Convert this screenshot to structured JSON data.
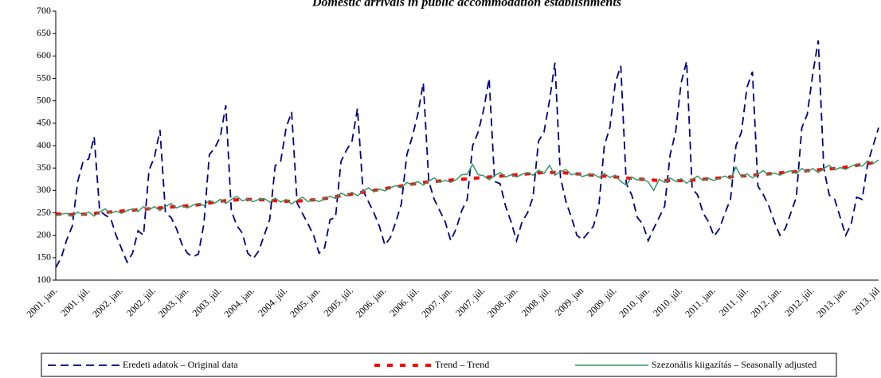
{
  "chart_data": {
    "type": "line",
    "title": "Domestic arrivals in public accommodation establishments",
    "categories": [
      "2001. jan.",
      null,
      null,
      null,
      null,
      null,
      "2001. júl.",
      null,
      null,
      null,
      null,
      null,
      "2002. jan.",
      null,
      null,
      null,
      null,
      null,
      "2002. júl.",
      null,
      null,
      null,
      null,
      null,
      "2003. jan.",
      null,
      null,
      null,
      null,
      null,
      "2003. júl.",
      null,
      null,
      null,
      null,
      null,
      "2004. jan.",
      null,
      null,
      null,
      null,
      null,
      "2004. júl.",
      null,
      null,
      null,
      null,
      null,
      "2005. jan.",
      null,
      null,
      null,
      null,
      null,
      "2005. júl.",
      null,
      null,
      null,
      null,
      null,
      "2006. jan.",
      null,
      null,
      null,
      null,
      null,
      "2006. júl.",
      null,
      null,
      null,
      null,
      null,
      "2007. jan.",
      null,
      null,
      null,
      null,
      null,
      "2007. júl.",
      null,
      null,
      null,
      null,
      null,
      "2008. jan.",
      null,
      null,
      null,
      null,
      null,
      "2008. júl.",
      null,
      null,
      null,
      null,
      null,
      "2009. jan",
      null,
      null,
      null,
      null,
      null,
      "2009. júl.",
      null,
      null,
      null,
      null,
      null,
      "2010. jan.",
      null,
      null,
      null,
      null,
      null,
      "2010. júl.",
      null,
      null,
      null,
      null,
      null,
      "2011. jan.",
      null,
      null,
      null,
      null,
      null,
      "2011. júl.",
      null,
      null,
      null,
      null,
      null,
      "2012. jan.",
      null,
      null,
      null,
      null,
      null,
      "2012. júl.",
      null,
      null,
      null,
      null,
      null,
      "2013. jan.",
      null,
      null,
      null,
      null,
      null,
      "2013. júl"
    ],
    "series": [
      {
        "name": "Eredeti adatok – Original data",
        "color": "#000080",
        "dash": "dashed",
        "values": [
          128,
          150,
          190,
          220,
          320,
          365,
          370,
          420,
          255,
          245,
          238,
          200,
          170,
          140,
          160,
          210,
          200,
          345,
          375,
          435,
          250,
          240,
          215,
          180,
          160,
          152,
          158,
          225,
          380,
          395,
          420,
          490,
          255,
          222,
          205,
          160,
          148,
          165,
          200,
          235,
          355,
          365,
          440,
          475,
          272,
          248,
          225,
          200,
          160,
          172,
          235,
          240,
          365,
          390,
          410,
          483,
          300,
          275,
          250,
          220,
          178,
          195,
          230,
          270,
          380,
          420,
          470,
          540,
          320,
          280,
          255,
          230,
          188,
          215,
          255,
          280,
          400,
          430,
          480,
          550,
          320,
          315,
          265,
          230,
          188,
          230,
          250,
          285,
          410,
          430,
          500,
          585,
          330,
          275,
          240,
          200,
          190,
          205,
          220,
          265,
          400,
          440,
          540,
          578,
          315,
          290,
          240,
          225,
          188,
          215,
          240,
          265,
          380,
          430,
          540,
          588,
          305,
          290,
          250,
          230,
          198,
          215,
          250,
          280,
          400,
          430,
          530,
          565,
          310,
          290,
          265,
          230,
          200,
          215,
          250,
          285,
          440,
          470,
          560,
          635,
          350,
          290,
          280,
          240,
          200,
          225,
          285,
          280,
          360,
          400,
          440
        ]
      },
      {
        "name": "Trend – Trend",
        "color": "#ff0000",
        "dash": "dotted",
        "values": [
          248,
          247,
          246,
          246,
          246,
          247,
          248,
          249,
          250,
          251,
          252,
          253,
          254,
          255,
          256,
          257,
          258,
          259,
          260,
          261,
          262,
          263,
          264,
          265,
          266,
          267,
          268,
          270,
          272,
          274,
          276,
          277,
          278,
          279,
          280,
          280,
          280,
          280,
          279,
          278,
          277,
          276,
          276,
          276,
          276,
          277,
          278,
          279,
          280,
          282,
          284,
          286,
          288,
          290,
          292,
          294,
          296,
          298,
          300,
          302,
          304,
          306,
          308,
          310,
          312,
          314,
          316,
          318,
          319,
          320,
          321,
          322,
          323,
          324,
          325,
          326,
          327,
          328,
          329,
          330,
          331,
          332,
          333,
          334,
          335,
          336,
          337,
          338,
          339,
          340,
          340,
          340,
          340,
          339,
          338,
          337,
          336,
          335,
          334,
          333,
          332,
          331,
          330,
          329,
          328,
          327,
          326,
          325,
          324,
          323,
          322,
          322,
          322,
          322,
          322,
          322,
          323,
          324,
          325,
          326,
          327,
          328,
          329,
          330,
          331,
          332,
          333,
          334,
          335,
          336,
          337,
          338,
          339,
          340,
          341,
          342,
          343,
          344,
          345,
          346,
          347,
          348,
          349,
          350,
          352,
          354,
          356,
          358,
          360,
          362,
          364
        ]
      },
      {
        "name": "Szezonális kiigazítás – Seasonally adjusted",
        "color": "#339966",
        "dash": "solid",
        "values": [
          243,
          247,
          249,
          242,
          252,
          245,
          252,
          243,
          252,
          259,
          249,
          254,
          249,
          255,
          259,
          253,
          264,
          257,
          264,
          255,
          264,
          271,
          261,
          266,
          261,
          267,
          271,
          266,
          278,
          272,
          280,
          271,
          280,
          287,
          277,
          281,
          275,
          280,
          282,
          274,
          283,
          274,
          280,
          270,
          278,
          285,
          275,
          280,
          275,
          282,
          287,
          282,
          294,
          288,
          296,
          288,
          298,
          306,
          297,
          303,
          299,
          306,
          311,
          306,
          318,
          312,
          320,
          312,
          321,
          328,
          318,
          323,
          318,
          324,
          335,
          336,
          358,
          335,
          333,
          324,
          333,
          340,
          330,
          335,
          330,
          336,
          340,
          334,
          345,
          338,
          356,
          334,
          342,
          347,
          335,
          338,
          331,
          335,
          337,
          329,
          338,
          329,
          334,
          320,
          312,
          330,
          323,
          326,
          319,
          300,
          325,
          318,
          328,
          320,
          326,
          316,
          325,
          332,
          322,
          327,
          322,
          328,
          332,
          326,
          352,
          330,
          337,
          328,
          337,
          344,
          334,
          339,
          334,
          340,
          344,
          338,
          349,
          342,
          349,
          340,
          349,
          356,
          346,
          351,
          347,
          354,
          359,
          354,
          366,
          360,
          368
        ]
      }
    ],
    "ylim": [
      100,
      700
    ],
    "yticks": [
      100,
      150,
      200,
      250,
      300,
      350,
      400,
      450,
      500,
      550,
      600,
      650,
      700
    ],
    "grid": false,
    "legend": "bottom"
  }
}
